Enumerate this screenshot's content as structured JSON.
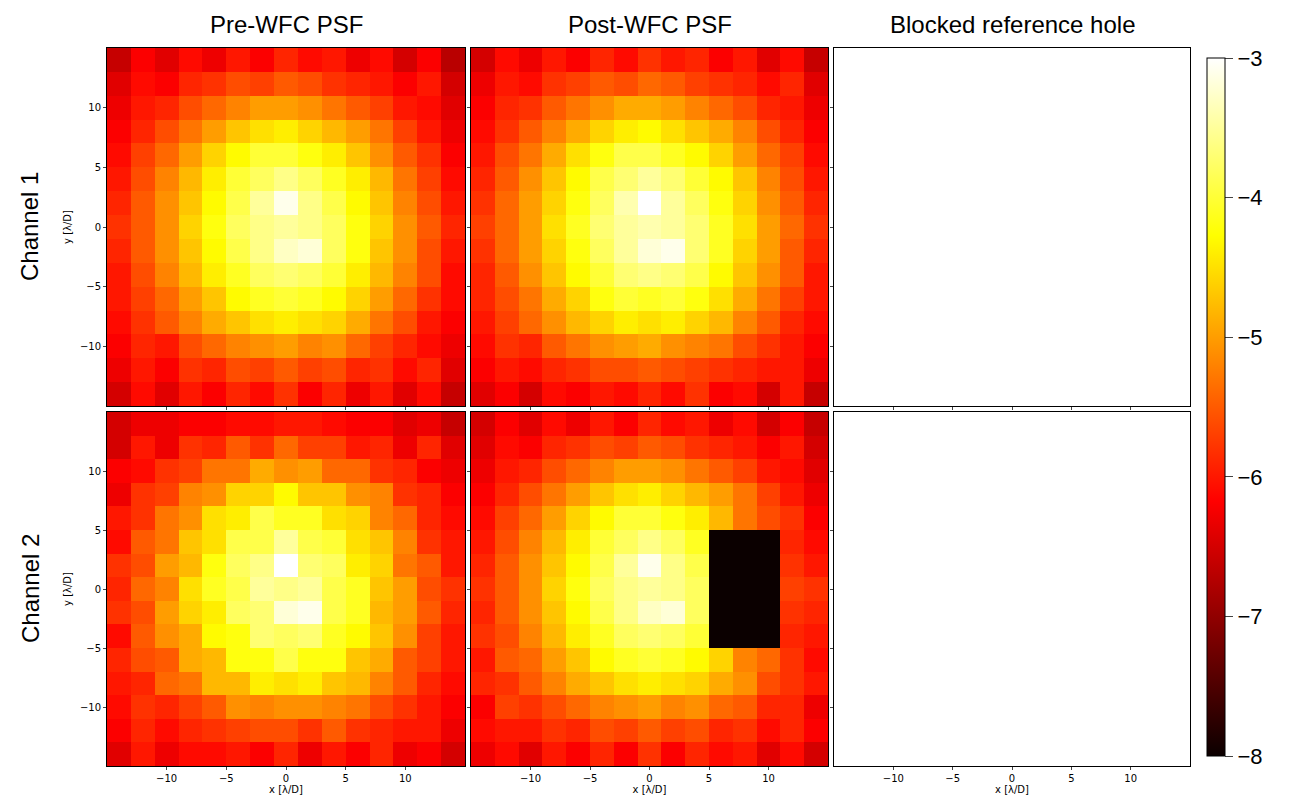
{
  "chart_data": {
    "type": "heatmap",
    "columns": [
      "Pre-WFC PSF",
      "Post-WFC PSF",
      "Blocked reference hole"
    ],
    "rows": [
      "Channel 1",
      "Channel 2"
    ],
    "xlabel": "x [λ/D]",
    "ylabel": "y [λ/D]",
    "x": [
      -14,
      -12,
      -10,
      -8,
      -6,
      -4,
      -2,
      0,
      2,
      4,
      6,
      8,
      10,
      12,
      14
    ],
    "y": [
      -14,
      -12,
      -10,
      -8,
      -6,
      -4,
      -2,
      0,
      2,
      4,
      6,
      8,
      10,
      12,
      14
    ],
    "xlim": [
      -15,
      15
    ],
    "ylim": [
      -15,
      15
    ],
    "xticks": [
      -10,
      -5,
      0,
      5,
      10
    ],
    "yticks": [
      -10,
      -5,
      0,
      5,
      10
    ],
    "colorbar": {
      "range": [
        -8,
        -3
      ],
      "ticks": [
        -8,
        -7,
        -6,
        -5,
        -4,
        -3
      ]
    },
    "cells": [
      [
        [
          [
            -6.5,
            -6.1,
            -6.4,
            -6.0,
            -6.2,
            -5.9,
            -6.1,
            -5.8,
            -6.2,
            -5.9,
            -6.3,
            -6.0,
            -6.4,
            -6.1,
            -6.6
          ],
          [
            -6.3,
            -6.0,
            -6.2,
            -5.8,
            -5.9,
            -5.6,
            -5.7,
            -5.5,
            -5.7,
            -5.6,
            -5.9,
            -5.8,
            -6.1,
            -5.9,
            -6.4
          ],
          [
            -6.2,
            -5.9,
            -6.0,
            -5.6,
            -5.4,
            -5.2,
            -5.1,
            -5.0,
            -5.2,
            -5.1,
            -5.4,
            -5.7,
            -5.9,
            -6.1,
            -6.3
          ],
          [
            -6.1,
            -5.8,
            -5.5,
            -5.2,
            -4.9,
            -4.7,
            -4.5,
            -4.4,
            -4.5,
            -4.6,
            -4.9,
            -5.3,
            -5.6,
            -6.0,
            -6.2
          ],
          [
            -6.0,
            -5.7,
            -5.4,
            -5.0,
            -4.7,
            -4.3,
            -4.1,
            -4.0,
            -4.1,
            -4.3,
            -4.6,
            -5.0,
            -5.4,
            -5.8,
            -6.1
          ],
          [
            -6.0,
            -5.6,
            -5.2,
            -4.8,
            -4.4,
            -4.1,
            -3.8,
            -3.7,
            -3.8,
            -4.0,
            -4.4,
            -4.8,
            -5.2,
            -5.6,
            -6.1
          ],
          [
            -5.9,
            -5.5,
            -5.1,
            -4.7,
            -4.3,
            -3.9,
            -3.6,
            -3.3,
            -3.2,
            -3.8,
            -4.2,
            -4.7,
            -5.1,
            -5.6,
            -6.0
          ],
          [
            -5.8,
            -5.5,
            -5.1,
            -4.6,
            -4.2,
            -3.8,
            -3.6,
            -3.5,
            -3.6,
            -3.8,
            -4.2,
            -4.6,
            -5.1,
            -5.5,
            -5.9
          ],
          [
            -5.9,
            -5.5,
            -5.1,
            -4.7,
            -4.3,
            -3.9,
            -3.5,
            -3.1,
            -3.6,
            -3.9,
            -4.3,
            -4.7,
            -5.2,
            -5.6,
            -6.0
          ],
          [
            -6.0,
            -5.6,
            -5.2,
            -4.8,
            -4.4,
            -4.0,
            -3.8,
            -3.6,
            -3.8,
            -4.1,
            -4.4,
            -4.8,
            -5.3,
            -5.7,
            -6.1
          ],
          [
            -6.1,
            -5.7,
            -5.4,
            -5.0,
            -4.6,
            -4.3,
            -4.0,
            -4.0,
            -4.2,
            -4.4,
            -4.7,
            -5.1,
            -5.5,
            -5.8,
            -6.2
          ],
          [
            -6.2,
            -5.9,
            -5.6,
            -5.3,
            -5.0,
            -4.7,
            -4.5,
            -4.4,
            -4.6,
            -4.8,
            -5.0,
            -5.3,
            -5.7,
            -6.0,
            -6.3
          ],
          [
            -6.3,
            -6.0,
            -5.9,
            -5.6,
            -5.4,
            -5.2,
            -5.0,
            -5.0,
            -5.1,
            -5.3,
            -5.5,
            -5.7,
            -6.0,
            -6.1,
            -6.4
          ],
          [
            -6.4,
            -6.1,
            -6.2,
            -5.9,
            -5.8,
            -5.6,
            -5.7,
            -5.5,
            -5.6,
            -5.8,
            -5.9,
            -6.0,
            -6.2,
            -6.0,
            -6.5
          ],
          [
            -6.6,
            -6.2,
            -6.4,
            -6.1,
            -6.3,
            -6.0,
            -6.2,
            -5.9,
            -6.1,
            -6.0,
            -6.3,
            -6.1,
            -6.5,
            -6.2,
            -6.7
          ]
        ],
        [
          [
            -6.4,
            -6.2,
            -6.5,
            -6.1,
            -6.2,
            -6.0,
            -6.1,
            -5.9,
            -6.1,
            -5.8,
            -6.2,
            -6.1,
            -6.5,
            -6.0,
            -6.6
          ],
          [
            -6.2,
            -6.0,
            -6.1,
            -5.9,
            -5.8,
            -5.6,
            -5.6,
            -5.5,
            -5.6,
            -5.7,
            -5.8,
            -5.9,
            -6.0,
            -6.0,
            -6.3
          ],
          [
            -6.1,
            -5.8,
            -5.9,
            -5.5,
            -5.3,
            -5.1,
            -5.0,
            -4.9,
            -5.1,
            -5.2,
            -5.3,
            -5.6,
            -5.8,
            -6.0,
            -6.2
          ],
          [
            -6.0,
            -5.7,
            -5.4,
            -5.1,
            -4.8,
            -4.6,
            -4.4,
            -4.5,
            -4.4,
            -4.6,
            -4.8,
            -5.2,
            -5.5,
            -5.9,
            -6.1
          ],
          [
            -5.9,
            -5.6,
            -5.3,
            -4.9,
            -4.6,
            -4.2,
            -4.0,
            -4.1,
            -4.0,
            -4.2,
            -4.5,
            -4.9,
            -5.3,
            -5.7,
            -6.0
          ],
          [
            -5.9,
            -5.5,
            -5.1,
            -4.7,
            -4.3,
            -4.0,
            -3.7,
            -3.6,
            -3.7,
            -3.9,
            -4.3,
            -4.7,
            -5.1,
            -5.5,
            -6.0
          ],
          [
            -5.8,
            -5.4,
            -5.0,
            -4.6,
            -4.2,
            -3.8,
            -3.5,
            -3.2,
            -3.1,
            -3.7,
            -4.1,
            -4.6,
            -5.0,
            -5.5,
            -5.9
          ],
          [
            -5.7,
            -5.4,
            -5.0,
            -4.5,
            -4.1,
            -3.7,
            -3.5,
            -3.4,
            -3.5,
            -3.7,
            -4.1,
            -4.5,
            -5.0,
            -5.4,
            -5.8
          ],
          [
            -5.8,
            -5.4,
            -5.0,
            -4.6,
            -4.2,
            -3.8,
            -3.4,
            -3.0,
            -3.5,
            -3.8,
            -4.2,
            -4.6,
            -5.1,
            -5.5,
            -5.9
          ],
          [
            -5.9,
            -5.5,
            -5.1,
            -4.7,
            -4.3,
            -3.9,
            -3.7,
            -3.5,
            -3.7,
            -4.0,
            -4.3,
            -4.7,
            -5.2,
            -5.6,
            -6.0
          ],
          [
            -6.0,
            -5.6,
            -5.3,
            -4.9,
            -4.5,
            -4.2,
            -3.9,
            -3.9,
            -4.1,
            -4.3,
            -4.6,
            -5.0,
            -5.4,
            -5.7,
            -6.1
          ],
          [
            -6.1,
            -5.8,
            -5.5,
            -5.2,
            -4.9,
            -4.6,
            -4.4,
            -4.3,
            -4.5,
            -4.7,
            -4.9,
            -5.2,
            -5.6,
            -5.9,
            -6.2
          ],
          [
            -6.2,
            -5.9,
            -5.8,
            -5.5,
            -5.3,
            -5.1,
            -4.9,
            -4.9,
            -5.0,
            -5.2,
            -5.4,
            -5.6,
            -5.9,
            -6.0,
            -6.3
          ],
          [
            -6.3,
            -6.0,
            -6.1,
            -5.8,
            -5.7,
            -5.5,
            -5.6,
            -5.4,
            -5.5,
            -5.7,
            -5.8,
            -5.9,
            -6.1,
            -5.9,
            -6.4
          ],
          [
            -6.5,
            -6.1,
            -6.3,
            -6.0,
            -6.2,
            -5.9,
            -6.1,
            -5.8,
            -6.0,
            -5.9,
            -6.2,
            -6.0,
            -6.4,
            -6.1,
            -6.6
          ]
        ]
      ],
      [
        [
          [
            -6.4,
            -6.0,
            -6.3,
            -6.1,
            -6.1,
            -6.0,
            -6.2,
            -5.9,
            -6.3,
            -6.0,
            -6.2,
            -5.9,
            -6.3,
            -6.2,
            -6.5
          ],
          [
            -6.2,
            -5.9,
            -6.1,
            -5.9,
            -5.8,
            -5.7,
            -5.6,
            -5.6,
            -5.8,
            -5.5,
            -5.8,
            -5.9,
            -6.0,
            -6.0,
            -6.3
          ],
          [
            -6.1,
            -5.8,
            -5.9,
            -5.7,
            -5.5,
            -5.1,
            -5.2,
            -5.1,
            -5.1,
            -5.2,
            -5.3,
            -5.6,
            -5.8,
            -6.0,
            -6.2
          ],
          [
            -6.0,
            -5.9,
            -5.4,
            -5.3,
            -4.8,
            -4.8,
            -4.4,
            -4.5,
            -4.4,
            -4.7,
            -4.8,
            -5.2,
            -5.5,
            -5.9,
            -6.1
          ],
          [
            -5.9,
            -5.6,
            -5.5,
            -4.9,
            -4.8,
            -4.2,
            -4.2,
            -3.9,
            -4.2,
            -4.2,
            -4.7,
            -4.9,
            -5.5,
            -5.7,
            -6.0
          ],
          [
            -6.1,
            -5.5,
            -5.1,
            -4.9,
            -4.3,
            -4.2,
            -3.7,
            -3.8,
            -3.7,
            -4.1,
            -4.3,
            -4.7,
            -5.1,
            -5.7,
            -6.0
          ],
          [
            -5.8,
            -5.6,
            -5.0,
            -4.6,
            -4.4,
            -3.8,
            -3.7,
            -3.2,
            -3.1,
            -3.9,
            -4.1,
            -4.8,
            -5.0,
            -5.5,
            -5.9
          ],
          [
            -5.9,
            -5.4,
            -5.2,
            -4.5,
            -4.1,
            -3.9,
            -3.5,
            -3.6,
            -3.5,
            -3.9,
            -4.1,
            -4.7,
            -5.0,
            -5.6,
            -5.8
          ],
          [
            -5.8,
            -5.6,
            -5.0,
            -4.8,
            -4.2,
            -3.8,
            -3.6,
            -3.0,
            -3.7,
            -3.8,
            -4.4,
            -4.6,
            -5.3,
            -5.5,
            -6.0
          ],
          [
            -6.1,
            -5.5,
            -5.3,
            -4.7,
            -4.5,
            -3.9,
            -3.9,
            -3.5,
            -3.9,
            -4.0,
            -4.5,
            -4.7,
            -5.2,
            -5.8,
            -6.0
          ],
          [
            -6.0,
            -5.8,
            -5.3,
            -5.1,
            -4.5,
            -4.4,
            -3.9,
            -4.1,
            -4.1,
            -4.5,
            -4.6,
            -5.2,
            -5.4,
            -5.9,
            -6.1
          ],
          [
            -6.3,
            -5.8,
            -5.7,
            -5.2,
            -5.1,
            -4.6,
            -4.6,
            -4.3,
            -4.7,
            -4.7,
            -5.1,
            -5.2,
            -5.8,
            -5.9,
            -6.2
          ],
          [
            -6.2,
            -6.1,
            -5.8,
            -5.7,
            -5.3,
            -5.3,
            -4.9,
            -5.1,
            -5.0,
            -5.4,
            -5.4,
            -5.8,
            -5.9,
            -6.2,
            -6.3
          ],
          [
            -6.5,
            -6.0,
            -6.3,
            -5.8,
            -5.9,
            -5.5,
            -5.8,
            -5.4,
            -5.7,
            -5.7,
            -6.0,
            -5.9,
            -6.3,
            -5.9,
            -6.4
          ],
          [
            -6.5,
            -6.3,
            -6.3,
            -6.2,
            -6.2,
            -6.1,
            -6.1,
            -6.0,
            -6.0,
            -6.1,
            -6.2,
            -6.2,
            -6.4,
            -6.3,
            -6.6
          ]
        ],
        [
          [
            -6.3,
            -6.1,
            -6.4,
            -6.0,
            -6.2,
            -5.9,
            -6.2,
            -5.8,
            -6.2,
            -5.9,
            -6.1,
            -6.0,
            -6.4,
            -6.1,
            -6.5
          ],
          [
            -6.1,
            -6.0,
            -6.0,
            -5.8,
            -5.9,
            -5.6,
            -5.7,
            -5.5,
            -5.7,
            -5.6,
            -5.9,
            -5.8,
            -6.1,
            -5.9,
            -6.2
          ],
          [
            -6.2,
            -5.7,
            -5.8,
            -5.6,
            -5.4,
            -5.2,
            -5.1,
            -5.0,
            -5.2,
            -5.1,
            -5.4,
            -5.5,
            -5.9,
            -5.9,
            -6.3
          ],
          [
            -5.9,
            -5.8,
            -5.5,
            -5.2,
            -4.9,
            -4.7,
            -4.5,
            -4.4,
            -4.5,
            -4.6,
            -4.9,
            -5.1,
            -5.6,
            -5.8,
            -6.0
          ],
          [
            -6.0,
            -5.5,
            -5.4,
            -5.0,
            -4.7,
            -4.3,
            -4.1,
            -4.0,
            -4.1,
            -4.3,
            -4.6,
            -5.2,
            -5.4,
            -5.8,
            -6.1
          ],
          [
            -5.8,
            -5.6,
            -5.2,
            -4.8,
            -4.4,
            -4.1,
            -3.8,
            -3.7,
            -3.8,
            -4.0,
            -8.0,
            -8.0,
            -8.0,
            -5.9,
            -6.0
          ],
          [
            -5.9,
            -5.5,
            -5.1,
            -4.7,
            -4.3,
            -3.9,
            -3.6,
            -3.3,
            -3.2,
            -3.8,
            -8.0,
            -8.0,
            -8.0,
            -5.8,
            -5.9
          ],
          [
            -5.8,
            -5.5,
            -5.1,
            -4.6,
            -4.2,
            -3.8,
            -3.6,
            -3.5,
            -3.6,
            -3.8,
            -8.0,
            -8.0,
            -8.0,
            -5.7,
            -5.8
          ],
          [
            -5.9,
            -5.5,
            -5.1,
            -4.7,
            -4.3,
            -3.9,
            -3.5,
            -3.1,
            -3.6,
            -3.9,
            -8.0,
            -8.0,
            -8.0,
            -5.8,
            -6.0
          ],
          [
            -6.0,
            -5.6,
            -5.2,
            -4.8,
            -4.4,
            -4.0,
            -3.8,
            -3.6,
            -3.8,
            -4.1,
            -8.0,
            -8.0,
            -8.0,
            -5.9,
            -6.1
          ],
          [
            -6.1,
            -5.7,
            -5.4,
            -5.0,
            -4.6,
            -4.3,
            -4.0,
            -4.0,
            -4.2,
            -4.4,
            -4.8,
            -5.3,
            -5.6,
            -5.8,
            -6.2
          ],
          [
            -6.2,
            -5.9,
            -5.6,
            -5.3,
            -5.0,
            -4.7,
            -4.5,
            -4.4,
            -4.6,
            -4.8,
            -5.0,
            -5.3,
            -5.7,
            -6.0,
            -6.3
          ],
          [
            -6.3,
            -6.0,
            -5.9,
            -5.6,
            -5.4,
            -5.2,
            -5.0,
            -5.0,
            -5.1,
            -5.3,
            -5.5,
            -5.7,
            -6.0,
            -6.1,
            -6.4
          ],
          [
            -6.4,
            -6.1,
            -6.2,
            -5.9,
            -5.8,
            -5.6,
            -5.7,
            -5.5,
            -5.6,
            -5.8,
            -5.9,
            -6.0,
            -6.2,
            -6.0,
            -6.5
          ],
          [
            -6.5,
            -6.2,
            -6.4,
            -6.1,
            -6.3,
            -6.0,
            -6.2,
            -5.9,
            -6.1,
            -6.0,
            -6.3,
            -6.1,
            -6.5,
            -6.2,
            -6.6
          ]
        ]
      ]
    ]
  }
}
